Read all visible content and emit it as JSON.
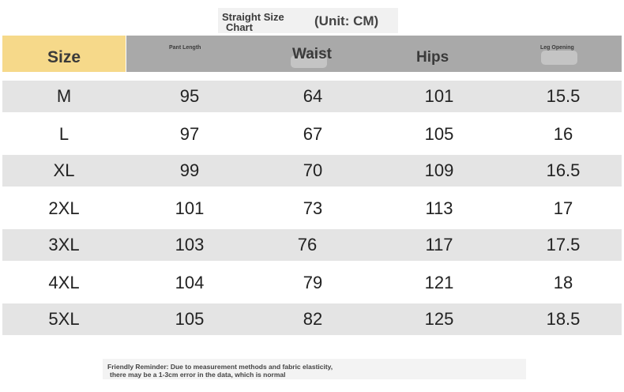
{
  "title": {
    "main": "Straight Size",
    "sub": "Chart",
    "unit": "(Unit: CM)"
  },
  "columns": {
    "size": "Size",
    "pant_length": "Pant Length",
    "waist": "Waist",
    "hips": "Hips",
    "leg_opening": "Leg Opening"
  },
  "rows": [
    [
      "M",
      "95",
      "64",
      "101",
      "15.5"
    ],
    [
      "L",
      "97",
      "67",
      "105",
      "16"
    ],
    [
      "XL",
      "99",
      "70",
      "109",
      "16.5"
    ],
    [
      "2XL",
      "101",
      "73",
      "113",
      "17"
    ],
    [
      "3XL",
      "103",
      "76",
      "117",
      "17.5"
    ],
    [
      "4XL",
      "104",
      "79",
      "121",
      "18"
    ],
    [
      "5XL",
      "105",
      "82",
      "125",
      "18.5"
    ]
  ],
  "note": {
    "line1": "Friendly Reminder: Due to measurement methods and fabric elasticity,",
    "line2": "there may be a 1-3cm error in the data, which is normal"
  },
  "colors": {
    "size_header": "#f6d98a",
    "header": "#a9a9a9",
    "row_shade": "#e4e4e4"
  }
}
